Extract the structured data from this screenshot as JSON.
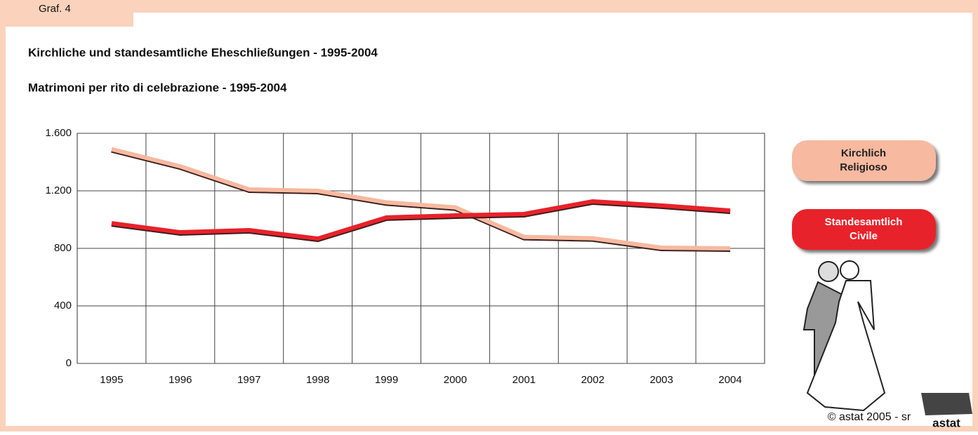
{
  "chart_data": {
    "type": "line",
    "tag": "Graf. 4",
    "title": "Kirchliche und standesamtliche Eheschließungen - 1995-2004",
    "subtitle": "Matrimoni per rito di celebrazione - 1995-2004",
    "categories": [
      "1995",
      "1996",
      "1997",
      "1998",
      "1999",
      "2000",
      "2001",
      "2002",
      "2003",
      "2004"
    ],
    "series": [
      {
        "name": [
          "Kirchlich",
          "Religioso"
        ],
        "color": "#f7b9a0",
        "values": [
          1490,
          1370,
          1210,
          1200,
          1120,
          1085,
          880,
          870,
          805,
          800
        ]
      },
      {
        "name": [
          "Standesamtlich",
          "Civile"
        ],
        "color": "#e8202a",
        "values": [
          975,
          912,
          927,
          868,
          1015,
          1029,
          1039,
          1127,
          1098,
          1063
        ]
      }
    ],
    "ylim": [
      0,
      1600
    ],
    "yticks": [
      0,
      400,
      800,
      {
        "value": 1200,
        "label": "1.200"
      },
      {
        "value": 1600,
        "label": "1.600"
      }
    ],
    "grid": true,
    "footer": "© astat 2005 - sr",
    "logo": "astat"
  }
}
